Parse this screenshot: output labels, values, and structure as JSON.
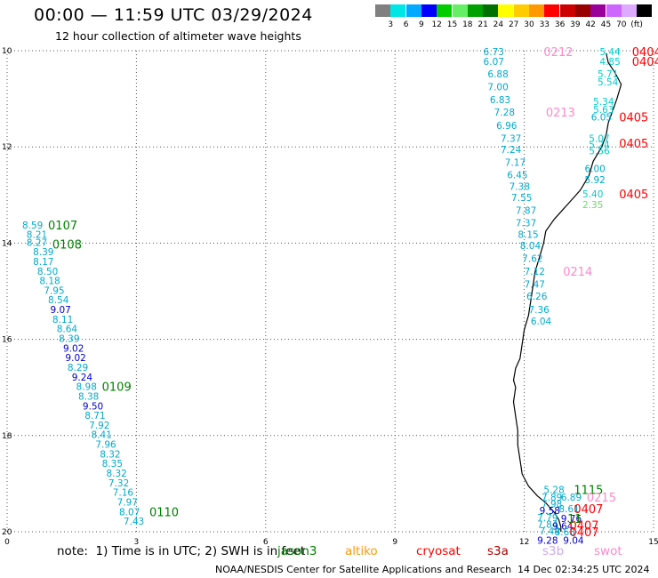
{
  "header": {
    "title": "00:00 — 11:59 UTC 03/29/2024",
    "subtitle": "12 hour collection of altimeter wave heights"
  },
  "colorbar": {
    "cells": [
      {
        "color": "#808080",
        "label": ""
      },
      {
        "color": "#00e5e5",
        "label": "3"
      },
      {
        "color": "#00aaff",
        "label": "6"
      },
      {
        "color": "#0000ff",
        "label": "9"
      },
      {
        "color": "#00cc00",
        "label": "12"
      },
      {
        "color": "#66ee66",
        "label": "15"
      },
      {
        "color": "#00a000",
        "label": "18"
      },
      {
        "color": "#007000",
        "label": "21"
      },
      {
        "color": "#ffff00",
        "label": "24"
      },
      {
        "color": "#ffcc00",
        "label": "27"
      },
      {
        "color": "#ff9900",
        "label": "30"
      },
      {
        "color": "#ff0000",
        "label": "33"
      },
      {
        "color": "#cc0000",
        "label": "36"
      },
      {
        "color": "#990000",
        "label": "39"
      },
      {
        "color": "#990099",
        "label": "42"
      },
      {
        "color": "#cc66ff",
        "label": "45"
      },
      {
        "color": "#ddaaff",
        "label": "70"
      },
      {
        "color": "#000000",
        "label": "(ft)"
      }
    ]
  },
  "footer": {
    "note": "note:  1) Time is in UTC; 2) SWH is in feet",
    "satellites": [
      {
        "name": "jason3",
        "color": "#008000"
      },
      {
        "name": "altiko",
        "color": "#ff9900"
      },
      {
        "name": "cryosat",
        "color": "#ff0000"
      },
      {
        "name": "s3a",
        "color": "#b00000"
      },
      {
        "name": "s3b",
        "color": "#ccaaee"
      },
      {
        "name": "swot",
        "color": "#ff88cc"
      }
    ],
    "credit": "NOAA/NESDIS Center for Satellite Applications and Research",
    "timestamp": "14 Dec 02:34:25 UTC 2024"
  },
  "chart_data": {
    "type": "scatter",
    "xlim": [
      0,
      15
    ],
    "ylim": [
      -20,
      -10
    ],
    "x_ticks": [
      0,
      3,
      6,
      9,
      12,
      15
    ],
    "x_tick_labels": [
      "0",
      "3",
      "6",
      "9",
      "12",
      "15"
    ],
    "y_ticks": [
      -10,
      -12,
      -14,
      -16,
      -18,
      -20
    ],
    "y_tick_labels": [
      "10",
      "12",
      "14",
      "16",
      "18",
      "20"
    ],
    "grid": true,
    "coastline": [
      [
        13.9,
        -10.05
      ],
      [
        13.95,
        -10.25
      ],
      [
        14.1,
        -10.45
      ],
      [
        14.25,
        -10.7
      ],
      [
        14.15,
        -11.0
      ],
      [
        14.05,
        -11.25
      ],
      [
        13.95,
        -11.5
      ],
      [
        13.9,
        -11.75
      ],
      [
        13.8,
        -12.0
      ],
      [
        13.6,
        -12.3
      ],
      [
        13.5,
        -12.6
      ],
      [
        13.3,
        -12.9
      ],
      [
        13.0,
        -13.2
      ],
      [
        12.7,
        -13.5
      ],
      [
        12.5,
        -13.75
      ],
      [
        12.45,
        -14.0
      ],
      [
        12.35,
        -14.3
      ],
      [
        12.25,
        -14.6
      ],
      [
        12.2,
        -14.9
      ],
      [
        12.15,
        -15.2
      ],
      [
        12.1,
        -15.5
      ],
      [
        12.0,
        -15.8
      ],
      [
        11.95,
        -16.1
      ],
      [
        11.9,
        -16.4
      ],
      [
        11.8,
        -16.6
      ],
      [
        11.75,
        -16.85
      ],
      [
        11.8,
        -17.0
      ],
      [
        11.75,
        -17.3
      ],
      [
        11.8,
        -17.6
      ],
      [
        11.85,
        -17.9
      ],
      [
        11.85,
        -18.2
      ],
      [
        11.9,
        -18.5
      ],
      [
        11.95,
        -18.8
      ],
      [
        12.1,
        -19.05
      ],
      [
        12.3,
        -19.25
      ],
      [
        12.5,
        -19.4
      ],
      [
        12.7,
        -19.6
      ],
      [
        12.8,
        -19.75
      ],
      [
        12.85,
        -19.9
      ],
      [
        12.85,
        -20.0
      ]
    ],
    "tracks": [
      {
        "points": [
          {
            "x": 0.35,
            "y": -13.62,
            "v": "8.59",
            "color": "#00aacc"
          },
          {
            "x": 0.45,
            "y": -13.82,
            "v": "8.21",
            "color": "#00aacc"
          },
          {
            "x": 0.45,
            "y": -13.98,
            "v": "8.27",
            "color": "#00aacc"
          },
          {
            "x": 0.6,
            "y": -14.18,
            "v": "8.39",
            "color": "#00aacc"
          },
          {
            "x": 0.6,
            "y": -14.38,
            "v": "8.17",
            "color": "#00aacc"
          },
          {
            "x": 0.7,
            "y": -14.58,
            "v": "8.50",
            "color": "#00aacc"
          },
          {
            "x": 0.75,
            "y": -14.78,
            "v": "8.18",
            "color": "#00aacc"
          },
          {
            "x": 0.85,
            "y": -14.98,
            "v": "7.95",
            "color": "#00aacc"
          },
          {
            "x": 0.95,
            "y": -15.18,
            "v": "8.54",
            "color": "#00aacc"
          },
          {
            "x": 1.0,
            "y": -15.38,
            "v": "9.07",
            "color": "#0000cc"
          },
          {
            "x": 1.05,
            "y": -15.58,
            "v": "8.11",
            "color": "#00aacc"
          },
          {
            "x": 1.15,
            "y": -15.78,
            "v": "8.64",
            "color": "#00aacc"
          },
          {
            "x": 1.2,
            "y": -15.98,
            "v": "8.39",
            "color": "#00aacc"
          },
          {
            "x": 1.3,
            "y": -16.18,
            "v": "9.02",
            "color": "#0000cc"
          },
          {
            "x": 1.35,
            "y": -16.38,
            "v": "9.02",
            "color": "#0000cc"
          },
          {
            "x": 1.4,
            "y": -16.58,
            "v": "8.29",
            "color": "#00aacc"
          },
          {
            "x": 1.5,
            "y": -16.78,
            "v": "9.24",
            "color": "#0000cc"
          },
          {
            "x": 1.6,
            "y": -16.98,
            "v": "8.98",
            "color": "#00aacc"
          },
          {
            "x": 1.65,
            "y": -17.18,
            "v": "8.38",
            "color": "#00aacc"
          },
          {
            "x": 1.75,
            "y": -17.38,
            "v": "9.50",
            "color": "#0000cc"
          },
          {
            "x": 1.8,
            "y": -17.58,
            "v": "8.71",
            "color": "#00aacc"
          },
          {
            "x": 1.9,
            "y": -17.78,
            "v": "7.92",
            "color": "#00aacc"
          },
          {
            "x": 1.95,
            "y": -17.98,
            "v": "8.41",
            "color": "#00aacc"
          },
          {
            "x": 2.05,
            "y": -18.18,
            "v": "7.96",
            "color": "#00aacc"
          },
          {
            "x": 2.15,
            "y": -18.38,
            "v": "8.32",
            "color": "#00aacc"
          },
          {
            "x": 2.2,
            "y": -18.58,
            "v": "8.35",
            "color": "#00aacc"
          },
          {
            "x": 2.3,
            "y": -18.78,
            "v": "8.32",
            "color": "#00aacc"
          },
          {
            "x": 2.35,
            "y": -18.98,
            "v": "7.32",
            "color": "#00aacc"
          },
          {
            "x": 2.45,
            "y": -19.18,
            "v": "7.16",
            "color": "#00aacc"
          },
          {
            "x": 2.55,
            "y": -19.38,
            "v": "7.97",
            "color": "#00aacc"
          },
          {
            "x": 2.6,
            "y": -19.58,
            "v": "8.07",
            "color": "#00aacc"
          },
          {
            "x": 2.7,
            "y": -19.78,
            "v": "7.43",
            "color": "#00aacc"
          }
        ],
        "labels": [
          {
            "x": 0.95,
            "y": -13.62,
            "text": "0107",
            "color": "#008000"
          },
          {
            "x": 1.05,
            "y": -14.02,
            "text": "0108",
            "color": "#008000"
          },
          {
            "x": 2.2,
            "y": -16.98,
            "text": "0109",
            "color": "#008000"
          },
          {
            "x": 3.3,
            "y": -19.58,
            "text": "0110",
            "color": "#008000"
          }
        ]
      },
      {
        "points": [
          {
            "x": 11.05,
            "y": -10.02,
            "v": "6.73",
            "color": "#00aacc"
          },
          {
            "x": 11.05,
            "y": -10.22,
            "v": "6.07",
            "color": "#00aacc"
          },
          {
            "x": 11.15,
            "y": -10.48,
            "v": "6.88",
            "color": "#00aacc"
          },
          {
            "x": 11.15,
            "y": -10.75,
            "v": "7.00",
            "color": "#00aacc"
          },
          {
            "x": 11.2,
            "y": -11.02,
            "v": "6.83",
            "color": "#00aacc"
          },
          {
            "x": 11.3,
            "y": -11.28,
            "v": "7.28",
            "color": "#00aacc"
          },
          {
            "x": 11.35,
            "y": -11.55,
            "v": "6.96",
            "color": "#00aacc"
          },
          {
            "x": 11.45,
            "y": -11.82,
            "v": "7.37",
            "color": "#00aacc"
          },
          {
            "x": 11.45,
            "y": -12.05,
            "v": "7.24",
            "color": "#00aacc"
          },
          {
            "x": 11.55,
            "y": -12.32,
            "v": "7.17",
            "color": "#00aacc"
          },
          {
            "x": 11.6,
            "y": -12.58,
            "v": "6.45",
            "color": "#00aacc"
          },
          {
            "x": 11.65,
            "y": -12.82,
            "v": "7.38",
            "color": "#00aacc"
          },
          {
            "x": 11.7,
            "y": -13.05,
            "v": "7.55",
            "color": "#00aacc"
          },
          {
            "x": 11.8,
            "y": -13.32,
            "v": "7.87",
            "color": "#00aacc"
          },
          {
            "x": 11.8,
            "y": -13.58,
            "v": "7.37",
            "color": "#00aacc"
          },
          {
            "x": 11.85,
            "y": -13.82,
            "v": "8.15",
            "color": "#00aacc"
          },
          {
            "x": 11.9,
            "y": -14.05,
            "v": "8.04",
            "color": "#00aacc"
          },
          {
            "x": 11.95,
            "y": -14.32,
            "v": "7.62",
            "color": "#00aacc"
          },
          {
            "x": 12.0,
            "y": -14.58,
            "v": "7.12",
            "color": "#00aacc"
          },
          {
            "x": 12.0,
            "y": -14.85,
            "v": "7.47",
            "color": "#00aacc"
          },
          {
            "x": 12.05,
            "y": -15.1,
            "v": "6.26",
            "color": "#00aacc"
          },
          {
            "x": 12.1,
            "y": -15.38,
            "v": "7.36",
            "color": "#00aacc"
          },
          {
            "x": 12.15,
            "y": -15.62,
            "v": "6.04",
            "color": "#00aacc"
          }
        ],
        "labels": [
          {
            "x": 12.45,
            "y": -10.02,
            "text": "0212",
            "color": "#ff88cc"
          },
          {
            "x": 12.5,
            "y": -11.28,
            "text": "0213",
            "color": "#ff88cc"
          },
          {
            "x": 12.9,
            "y": -14.58,
            "text": "0214",
            "color": "#ff88cc"
          }
        ]
      },
      {
        "points": [
          {
            "x": 13.75,
            "y": -10.02,
            "v": "5.44",
            "color": "#00cccc"
          },
          {
            "x": 13.75,
            "y": -10.22,
            "v": "4.85",
            "color": "#00cccc"
          },
          {
            "x": 13.7,
            "y": -10.48,
            "v": "5.71",
            "color": "#00cccc"
          },
          {
            "x": 13.7,
            "y": -10.65,
            "v": "5.54",
            "color": "#00cccc"
          },
          {
            "x": 13.6,
            "y": -11.05,
            "v": "5.34",
            "color": "#00cccc"
          },
          {
            "x": 13.6,
            "y": -11.22,
            "v": "5.63",
            "color": "#00cccc"
          },
          {
            "x": 13.55,
            "y": -11.38,
            "v": "6.05",
            "color": "#00aacc"
          },
          {
            "x": 13.5,
            "y": -11.82,
            "v": "5.07",
            "color": "#00cccc"
          },
          {
            "x": 13.5,
            "y": -11.95,
            "v": "5.24",
            "color": "#00cccc"
          },
          {
            "x": 13.5,
            "y": -12.08,
            "v": "5.56",
            "color": "#00cccc"
          },
          {
            "x": 13.4,
            "y": -12.45,
            "v": "6.00",
            "color": "#00aacc"
          },
          {
            "x": 13.4,
            "y": -12.68,
            "v": "5.92",
            "color": "#00aacc"
          },
          {
            "x": 13.35,
            "y": -12.98,
            "v": "5.40",
            "color": "#00cccc"
          },
          {
            "x": 13.35,
            "y": -13.2,
            "v": "2.35",
            "color": "#66dd66"
          }
        ],
        "labels": [
          {
            "x": 14.5,
            "y": -10.02,
            "text": "0404",
            "color": "#ff0000"
          },
          {
            "x": 14.5,
            "y": -10.22,
            "text": "0404",
            "color": "#ff0000"
          },
          {
            "x": 14.2,
            "y": -11.38,
            "text": "0405",
            "color": "#ff0000"
          },
          {
            "x": 14.2,
            "y": -11.92,
            "text": "0405",
            "color": "#ff0000"
          },
          {
            "x": 14.2,
            "y": -12.98,
            "text": "0405",
            "color": "#ff0000"
          }
        ]
      },
      {
        "points": [
          {
            "x": 12.45,
            "y": -19.12,
            "v": "5.28",
            "color": "#00aacc"
          },
          {
            "x": 12.4,
            "y": -19.28,
            "v": "7.89",
            "color": "#00aacc"
          },
          {
            "x": 12.85,
            "y": -19.28,
            "v": "6.89",
            "color": "#00aacc"
          },
          {
            "x": 12.4,
            "y": -19.42,
            "v": "7.98",
            "color": "#00aacc"
          },
          {
            "x": 12.35,
            "y": -19.56,
            "v": "9.58",
            "color": "#0000cc"
          },
          {
            "x": 12.8,
            "y": -19.52,
            "v": "8.61",
            "color": "#00aacc"
          },
          {
            "x": 12.3,
            "y": -19.7,
            "v": "7.79",
            "color": "#00aacc"
          },
          {
            "x": 12.85,
            "y": -19.72,
            "v": "9.76",
            "color": "#0000cc"
          },
          {
            "x": 12.3,
            "y": -19.84,
            "v": "7.84",
            "color": "#00aacc"
          },
          {
            "x": 12.65,
            "y": -19.88,
            "v": "9.64",
            "color": "#0000cc"
          },
          {
            "x": 12.35,
            "y": -19.98,
            "v": "7.44",
            "color": "#00aacc"
          },
          {
            "x": 12.7,
            "y": -20.0,
            "v": "8.68",
            "color": "#00aacc"
          },
          {
            "x": 12.3,
            "y": -20.18,
            "v": "9.28",
            "color": "#0000cc"
          },
          {
            "x": 12.9,
            "y": -20.18,
            "v": "9.04",
            "color": "#0000cc"
          }
        ],
        "labels": [
          {
            "x": 13.15,
            "y": -19.12,
            "text": "1115",
            "color": "#008000"
          },
          {
            "x": 13.45,
            "y": -19.28,
            "text": "0215",
            "color": "#ff88cc"
          },
          {
            "x": 13.15,
            "y": -19.52,
            "text": "0407",
            "color": "#ff0000"
          },
          {
            "x": 13.0,
            "y": -19.72,
            "text": "11",
            "color": "#008000"
          },
          {
            "x": 13.05,
            "y": -19.86,
            "text": "0407",
            "color": "#ff0000"
          },
          {
            "x": 13.05,
            "y": -20.0,
            "text": "0407",
            "color": "#ff0000"
          }
        ]
      }
    ]
  }
}
